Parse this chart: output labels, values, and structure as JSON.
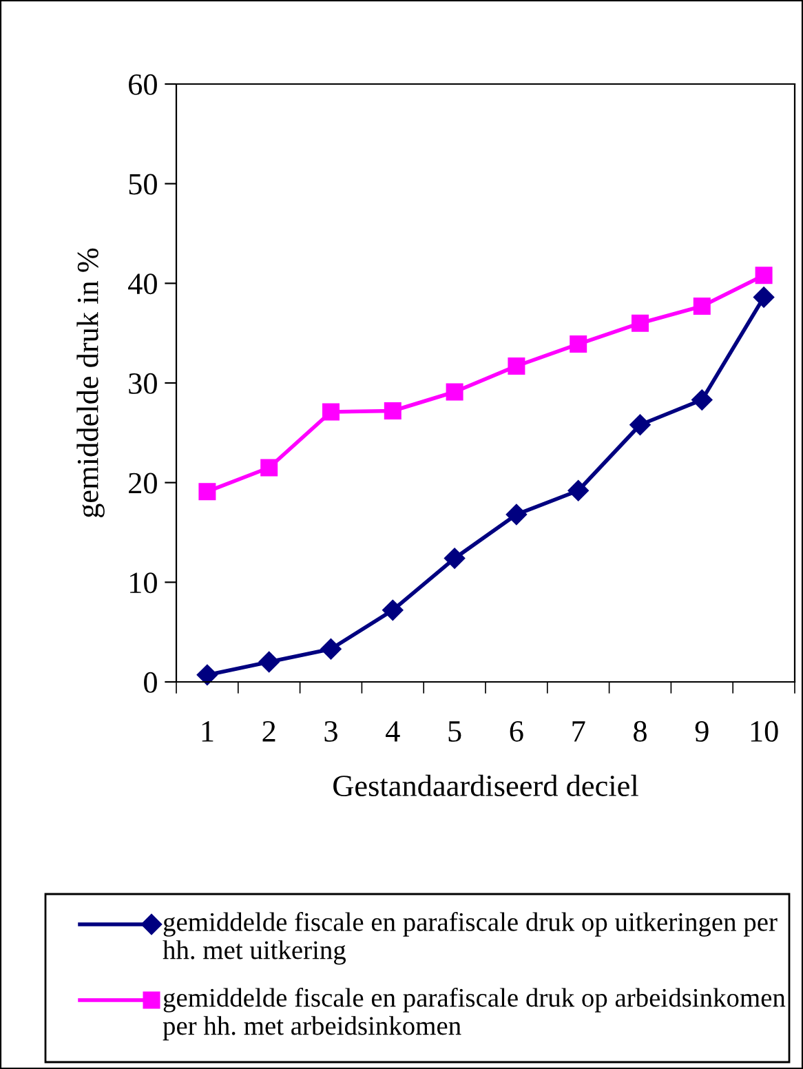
{
  "chart_data": {
    "type": "line",
    "xlabel": "Gestandaardiseerd deciel",
    "ylabel": "gemiddelde druk in %",
    "categories": [
      "1",
      "2",
      "3",
      "4",
      "5",
      "6",
      "7",
      "8",
      "9",
      "10"
    ],
    "series": [
      {
        "name": "gemiddelde fiscale en parafiscale druk op uitkeringen per hh. met uitkering",
        "color": "#000080",
        "marker": "diamond",
        "values": [
          0.7,
          2.0,
          3.3,
          7.2,
          12.4,
          16.8,
          19.2,
          25.8,
          28.3,
          38.6
        ]
      },
      {
        "name": "gemiddelde fiscale en parafiscale druk op arbeidsinkomen per hh. met arbeidsinkomen",
        "color": "#ff00ff",
        "marker": "square",
        "values": [
          19.1,
          21.5,
          27.1,
          27.2,
          29.1,
          31.7,
          33.9,
          36.0,
          37.7,
          40.8
        ]
      }
    ],
    "ylim": [
      0,
      60
    ],
    "yticks": [
      0,
      10,
      20,
      30,
      40,
      50,
      60
    ],
    "grid": false,
    "legend": "bottom",
    "line_style": "solid"
  }
}
